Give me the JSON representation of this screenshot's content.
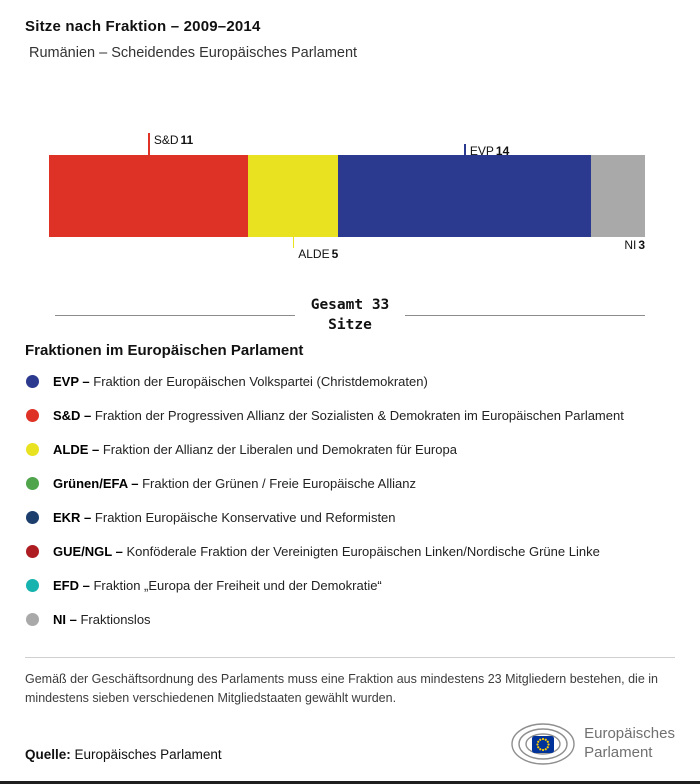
{
  "header": {
    "title": "Sitze nach Fraktion – 2009–2014",
    "subtitle": "Rumänien – Scheidendes Europäisches Parlament"
  },
  "chart_data": {
    "type": "bar",
    "subtype": "horizontal-stacked",
    "title": "Sitze nach Fraktion – 2009–2014",
    "total": 33,
    "total_label_line1": "Gesamt 33",
    "total_label_line2": "Sitze",
    "segments": [
      {
        "name": "S&D",
        "value": 11,
        "color": "#df3226"
      },
      {
        "name": "ALDE",
        "value": 5,
        "color": "#e8e221"
      },
      {
        "name": "EVP",
        "value": 14,
        "color": "#2b3a8e"
      },
      {
        "name": "NI",
        "value": 3,
        "color": "#a9a9a9"
      }
    ]
  },
  "legend": {
    "heading": "Fraktionen im Europäischen Parlament",
    "items": [
      {
        "abbr": "EVP –",
        "desc": "Fraktion der Europäischen Volkspartei (Christdemokraten)",
        "color": "#2b3a8e"
      },
      {
        "abbr": "S&D –",
        "desc": "Fraktion der Progressiven Allianz der Sozialisten & Demokraten im Europäischen Parlament",
        "color": "#df3226"
      },
      {
        "abbr": "ALDE –",
        "desc": "Fraktion der Allianz der Liberalen und Demokraten für Europa",
        "color": "#e8e221"
      },
      {
        "abbr": "Grünen/EFA –",
        "desc": "Fraktion der Grünen / Freie Europäische Allianz",
        "color": "#4fa44c"
      },
      {
        "abbr": "EKR –",
        "desc": "Fraktion Europäische Konservative und Reformisten",
        "color": "#1c3e6d"
      },
      {
        "abbr": "GUE/NGL –",
        "desc": "Konföderale Fraktion der Vereinigten Europäischen Linken/Nordische Grüne Linke",
        "color": "#ad1d22"
      },
      {
        "abbr": "EFD –",
        "desc": "Fraktion „Europa der Freiheit und der Demokratie“",
        "color": "#16b3af"
      },
      {
        "abbr": "NI –",
        "desc": "Fraktionslos",
        "color": "#a9a9a9"
      }
    ]
  },
  "footnote": "Gemäß der Geschäftsordnung des Parlaments muss eine Fraktion aus mindestens 23 Mitgliedern bestehen, die in mindestens sieben verschiedenen Mitgliedstaaten gewählt wurden.",
  "source": {
    "label": "Quelle:",
    "text": "Europäisches Parlament"
  },
  "logo": {
    "line1": "Europäisches",
    "line2": "Parlament"
  }
}
